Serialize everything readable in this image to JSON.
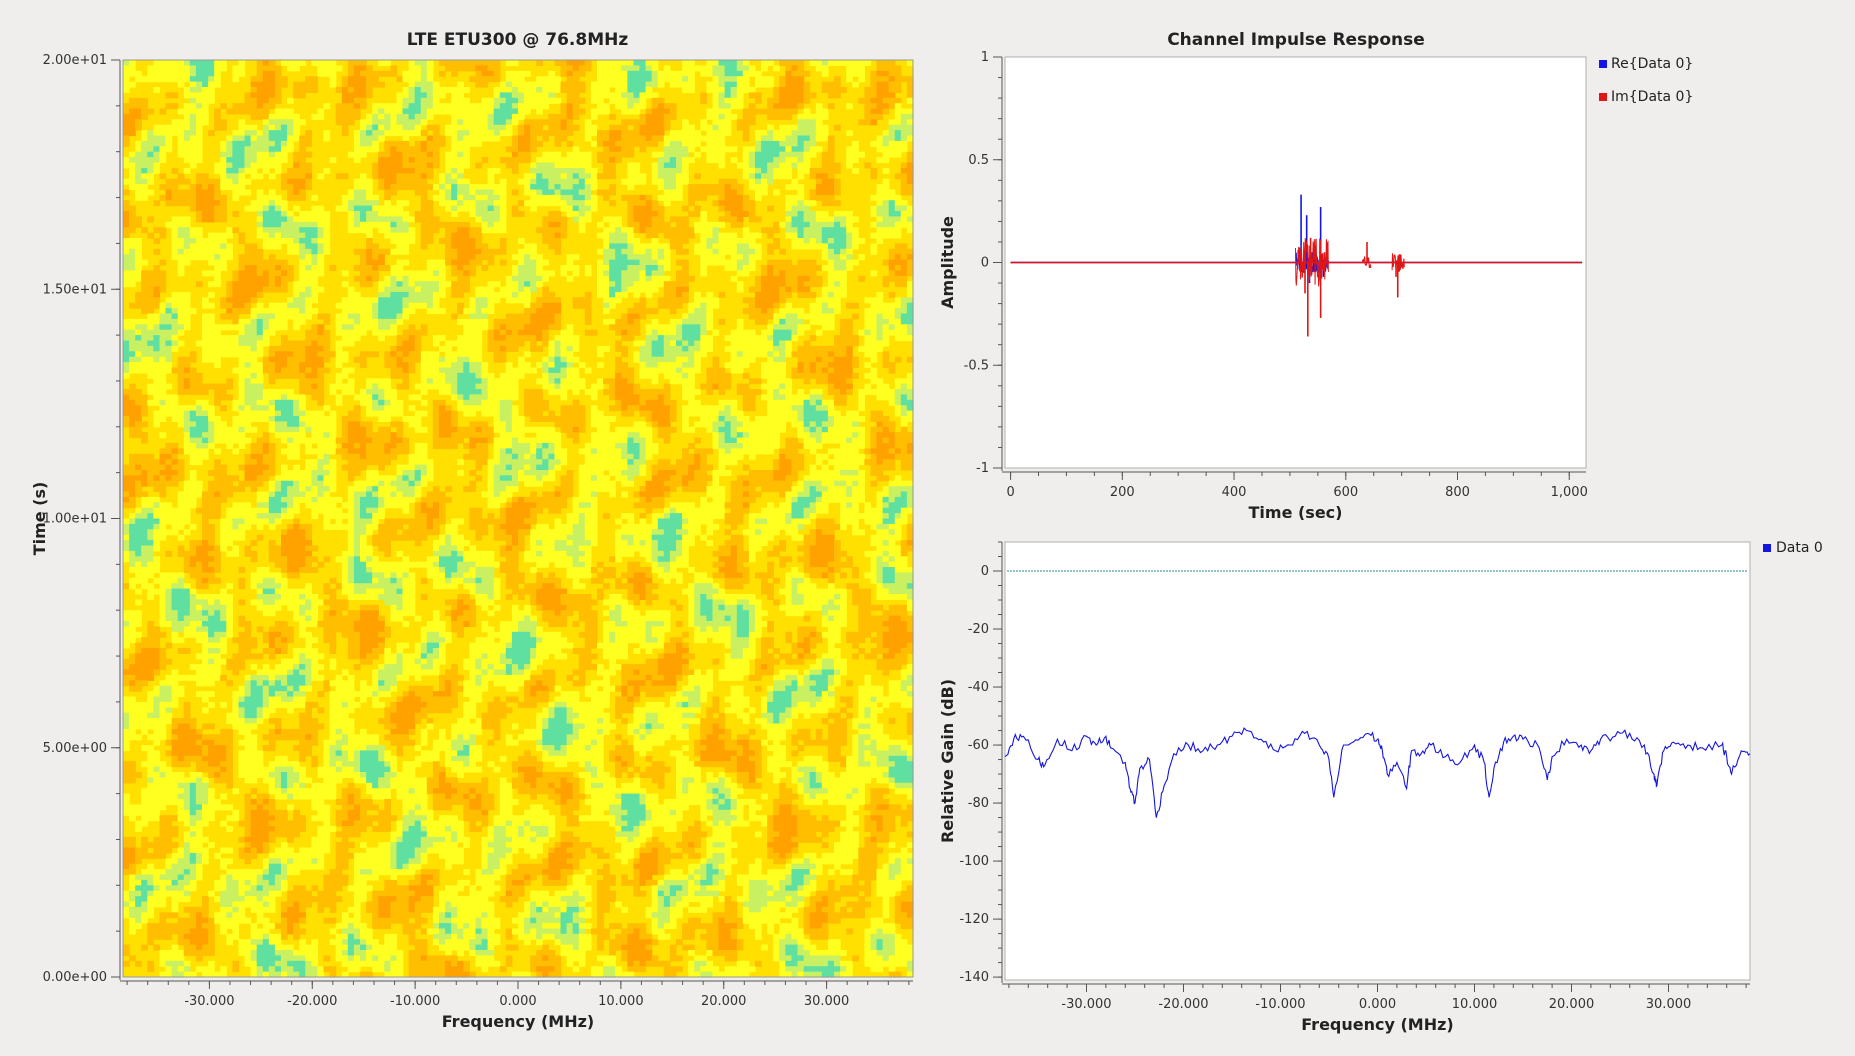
{
  "chart_data": [
    {
      "type": "heatmap",
      "title": "LTE ETU300 @ 76.8MHz",
      "xlabel": "Frequency (MHz)",
      "ylabel": "Time (s)",
      "xlim": [
        -38.4,
        38.4
      ],
      "ylim": [
        0,
        20
      ],
      "x_ticks": [
        -30,
        -20,
        -10,
        0,
        10,
        20,
        30
      ],
      "x_tick_labels": [
        "-30.000",
        "-20.000",
        "-10.000",
        "0.000",
        "10.000",
        "20.000",
        "30.000"
      ],
      "y_ticks": [
        0,
        5,
        10,
        15,
        20
      ],
      "y_tick_labels": [
        "0.00e+00",
        "5.00e+00",
        "1.00e+01",
        "1.50e+01",
        "2.00e+01"
      ],
      "colors": [
        "#ffa200",
        "#ffbf00",
        "#ffe000",
        "#ffff20",
        "#c8f060",
        "#5fe0a0"
      ]
    },
    {
      "type": "line",
      "title": "Channel Impulse Response",
      "xlabel": "Time (sec)",
      "ylabel": "Amplitude",
      "xlim": [
        -10,
        1030
      ],
      "ylim": [
        -1,
        1
      ],
      "x_ticks": [
        0,
        200,
        400,
        600,
        800,
        1000
      ],
      "x_tick_labels": [
        "0",
        "200",
        "400",
        "600",
        "800",
        "1,000"
      ],
      "y_ticks": [
        -1,
        -0.5,
        0,
        0.5,
        1
      ],
      "y_tick_labels": [
        "-1",
        "-0.5",
        "0",
        "0.5",
        "1"
      ],
      "legend": "top-right",
      "series": [
        {
          "name": "Re{Data 0}",
          "color": "#1515e0",
          "peaks": [
            [
              515,
              0.06
            ],
            [
              520,
              0.33
            ],
            [
              525,
              -0.05
            ],
            [
              530,
              0.23
            ],
            [
              535,
              -0.1
            ],
            [
              540,
              0.05
            ],
            [
              548,
              -0.04
            ],
            [
              555,
              0.27
            ],
            [
              560,
              -0.07
            ]
          ]
        },
        {
          "name": "Im{Data 0}",
          "color": "#e01515",
          "peaks": [
            [
              520,
              0.05
            ],
            [
              527,
              -0.15
            ],
            [
              532,
              -0.36
            ],
            [
              537,
              0.12
            ],
            [
              545,
              0.08
            ],
            [
              555,
              -0.27
            ],
            [
              562,
              0.05
            ],
            [
              638,
              0.1
            ],
            [
              640,
              0.0
            ],
            [
              690,
              -0.07
            ],
            [
              693,
              -0.17
            ],
            [
              697,
              0.04
            ]
          ]
        }
      ]
    },
    {
      "type": "line",
      "title": "",
      "xlabel": "Frequency (MHz)",
      "ylabel": "Relative Gain (dB)",
      "xlim": [
        -38.4,
        38.4
      ],
      "ylim": [
        -141,
        10
      ],
      "x_ticks": [
        -30,
        -20,
        -10,
        0,
        10,
        20,
        30
      ],
      "x_tick_labels": [
        "-30.000",
        "-20.000",
        "-10.000",
        "0.000",
        "10.000",
        "20.000",
        "30.000"
      ],
      "y_ticks": [
        -140,
        -120,
        -100,
        -80,
        -60,
        -40,
        -20,
        0
      ],
      "y_tick_labels": [
        "-140",
        "-120",
        "-100",
        "-80",
        "-60",
        "-40",
        "-20",
        "0"
      ],
      "legend": "top-right",
      "reference_line": {
        "y": 0,
        "color": "#2a8a8a"
      },
      "series": [
        {
          "name": "Data 0",
          "color": "#1515e0",
          "x": [
            -38.4,
            -37.5,
            -36.5,
            -35,
            -34.3,
            -33,
            -31.5,
            -30,
            -29,
            -28,
            -27.5,
            -26,
            -25.5,
            -25,
            -24.5,
            -23.5,
            -22.8,
            -22,
            -21,
            -19.5,
            -18,
            -16.5,
            -15,
            -13.5,
            -12,
            -10.5,
            -9,
            -7.5,
            -6,
            -5,
            -4.5,
            -3.5,
            -2.5,
            -1,
            0,
            0.5,
            1,
            2,
            3,
            3.5,
            4.5,
            5.5,
            7,
            8.5,
            10,
            11,
            11.5,
            12,
            13,
            14,
            15,
            16.5,
            17.5,
            18,
            19.5,
            21,
            22,
            23,
            24.5,
            26,
            27.5,
            28.5,
            28.8,
            29.5,
            30.5,
            32,
            33.5,
            35.5,
            36,
            36.5,
            37.5,
            38.4
          ],
          "y": [
            -64,
            -58,
            -57,
            -65,
            -67,
            -58,
            -62,
            -57,
            -60,
            -57,
            -61,
            -66,
            -75,
            -80,
            -68,
            -65,
            -85,
            -74,
            -63,
            -60,
            -62,
            -60,
            -57,
            -55,
            -58,
            -62,
            -60,
            -56,
            -60,
            -65,
            -78,
            -60,
            -59,
            -56,
            -58,
            -62,
            -70,
            -66,
            -75,
            -62,
            -63,
            -60,
            -64,
            -66,
            -60,
            -66,
            -78,
            -68,
            -59,
            -57,
            -58,
            -60,
            -72,
            -64,
            -58,
            -60,
            -62,
            -58,
            -57,
            -56,
            -60,
            -70,
            -74,
            -62,
            -59,
            -60,
            -61,
            -60,
            -64,
            -70,
            -62,
            -63
          ]
        }
      ]
    }
  ]
}
